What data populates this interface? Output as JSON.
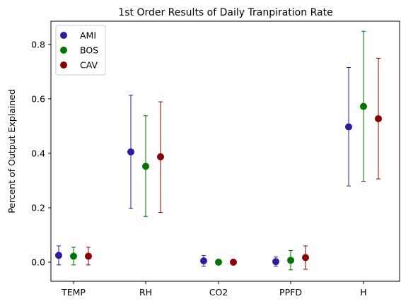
{
  "chart_data": {
    "type": "scatter",
    "title": "1st Order Results of Daily Tranpiration Rate",
    "xlabel": "",
    "ylabel": "Percent of Output Explained",
    "categories": [
      "TEMP",
      "RH",
      "CO2",
      "PPFD",
      "H"
    ],
    "ylim": [
      -0.07,
      0.885
    ],
    "yticks": [
      0.0,
      0.2,
      0.4,
      0.6,
      0.8
    ],
    "ytick_labels": [
      "0.0",
      "0.2",
      "0.4",
      "0.6",
      "0.8"
    ],
    "legend_position": "top-left",
    "series": [
      {
        "name": "AMI",
        "color": "#2d1c9e",
        "values": [
          0.025,
          0.405,
          0.005,
          0.002,
          0.497
        ],
        "lower": [
          -0.01,
          0.197,
          -0.015,
          -0.015,
          0.28
        ],
        "upper": [
          0.06,
          0.613,
          0.025,
          0.019,
          0.715
        ]
      },
      {
        "name": "BOS",
        "color": "#007300",
        "values": [
          0.022,
          0.352,
          0.0,
          0.007,
          0.572
        ],
        "lower": [
          -0.01,
          0.168,
          0.0,
          -0.028,
          0.297
        ],
        "upper": [
          0.055,
          0.538,
          0.0,
          0.043,
          0.848
        ]
      },
      {
        "name": "CAV",
        "color": "#8c0000",
        "values": [
          0.022,
          0.387,
          0.0,
          0.017,
          0.527
        ],
        "lower": [
          -0.01,
          0.183,
          0.0,
          -0.026,
          0.306
        ],
        "upper": [
          0.055,
          0.589,
          0.0,
          0.06,
          0.749
        ]
      }
    ]
  }
}
